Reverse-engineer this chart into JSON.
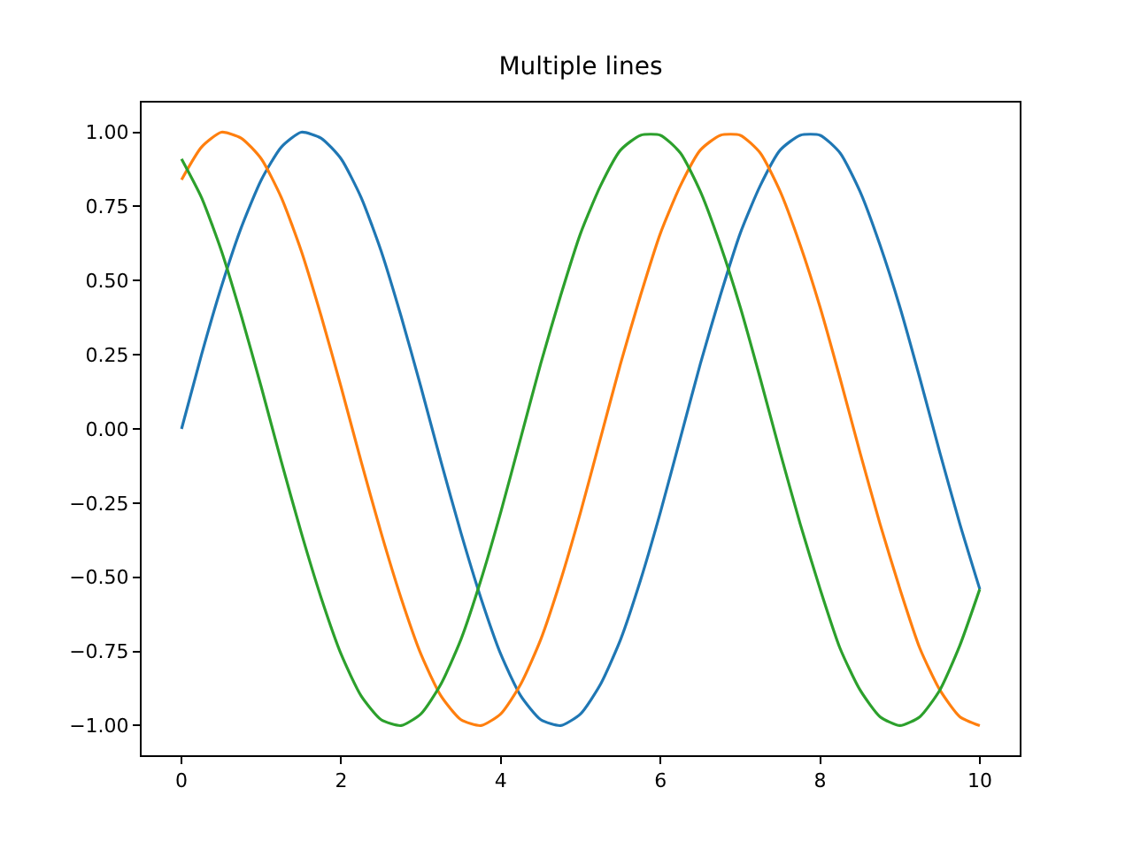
{
  "chart_data": {
    "type": "line",
    "title": "Multiple lines",
    "x": [
      0,
      0.25,
      0.5,
      0.75,
      1,
      1.25,
      1.5,
      1.75,
      2,
      2.25,
      2.5,
      2.75,
      3,
      3.25,
      3.5,
      3.75,
      4,
      4.25,
      4.5,
      4.75,
      5,
      5.25,
      5.5,
      5.75,
      6,
      6.25,
      6.5,
      6.75,
      7,
      7.25,
      7.5,
      7.75,
      8,
      8.25,
      8.5,
      8.75,
      9,
      9.25,
      9.5,
      9.75,
      10
    ],
    "series": [
      {
        "color": "#1f77b4",
        "values": [
          0,
          0.25,
          0.48,
          0.68,
          0.84,
          0.95,
          1.0,
          0.98,
          0.91,
          0.78,
          0.6,
          0.38,
          0.14,
          -0.11,
          -0.35,
          -0.57,
          -0.76,
          -0.9,
          -0.98,
          -1.0,
          -0.96,
          -0.86,
          -0.71,
          -0.51,
          -0.28,
          -0.03,
          0.22,
          0.45,
          0.66,
          0.82,
          0.94,
          0.99,
          0.99,
          0.93,
          0.8,
          0.62,
          0.41,
          0.17,
          -0.08,
          -0.32,
          -0.54
        ]
      },
      {
        "color": "#ff7f0e",
        "values": [
          0.84,
          0.95,
          1.0,
          0.98,
          0.91,
          0.78,
          0.6,
          0.38,
          0.14,
          -0.11,
          -0.35,
          -0.57,
          -0.76,
          -0.9,
          -0.98,
          -1.0,
          -0.96,
          -0.86,
          -0.71,
          -0.51,
          -0.28,
          -0.03,
          0.22,
          0.45,
          0.66,
          0.82,
          0.94,
          0.99,
          0.99,
          0.93,
          0.8,
          0.62,
          0.41,
          0.17,
          -0.08,
          -0.32,
          -0.54,
          -0.74,
          -0.88,
          -0.97,
          -1.0
        ]
      },
      {
        "color": "#2ca02c",
        "values": [
          0.91,
          0.78,
          0.6,
          0.38,
          0.14,
          -0.11,
          -0.35,
          -0.57,
          -0.76,
          -0.9,
          -0.98,
          -1.0,
          -0.96,
          -0.86,
          -0.71,
          -0.51,
          -0.28,
          -0.03,
          0.22,
          0.45,
          0.66,
          0.82,
          0.94,
          0.99,
          0.99,
          0.93,
          0.8,
          0.62,
          0.41,
          0.17,
          -0.08,
          -0.32,
          -0.54,
          -0.74,
          -0.88,
          -0.97,
          -1.0,
          -0.97,
          -0.88,
          -0.73,
          -0.54
        ]
      }
    ],
    "xlim": [
      -0.5,
      10.5
    ],
    "xticks": [
      0,
      2,
      4,
      6,
      8,
      10
    ],
    "ylim": [
      -1.1,
      1.1
    ],
    "yticks": [
      {
        "value": -1,
        "label": "−1.00"
      },
      {
        "value": -0.75,
        "label": "−0.75"
      },
      {
        "value": -0.5,
        "label": "−0.50"
      },
      {
        "value": -0.25,
        "label": "−0.25"
      },
      {
        "value": 0,
        "label": "0.00"
      },
      {
        "value": 0.25,
        "label": "0.25"
      },
      {
        "value": 0.5,
        "label": "0.50"
      },
      {
        "value": 0.75,
        "label": "0.75"
      },
      {
        "value": 1,
        "label": "1.00"
      }
    ],
    "grid": false,
    "line_style": "solid",
    "marker": "none"
  }
}
